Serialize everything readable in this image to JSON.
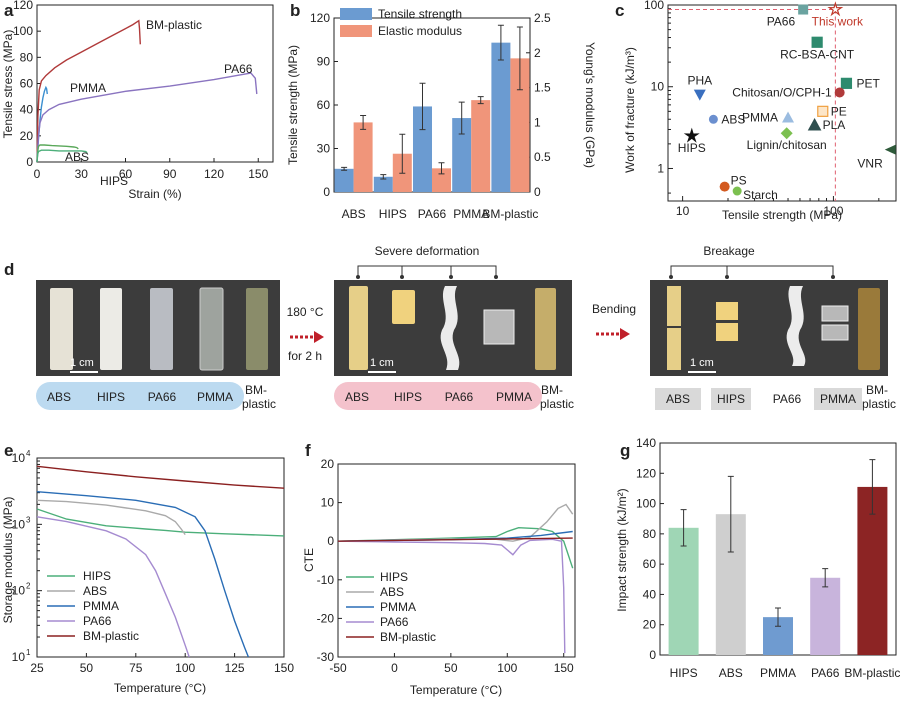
{
  "panels": {
    "a": "a",
    "b": "b",
    "c": "c",
    "d": "d",
    "e": "e",
    "f": "f",
    "g": "g"
  },
  "chart_data": [
    {
      "id": "a",
      "type": "line",
      "xlabel": "Strain (%)",
      "ylabel": "Tensile stress (MPa)",
      "xlim": [
        0,
        160
      ],
      "ylim": [
        0,
        120
      ],
      "xticks": [
        0,
        30,
        60,
        90,
        120,
        150
      ],
      "yticks": [
        0,
        20,
        40,
        60,
        80,
        100,
        120
      ],
      "annotations": [
        "BM-plastic",
        "PMMA",
        "PA66",
        "ABS",
        "HIPS"
      ],
      "series": [
        {
          "name": "BM-plastic",
          "color": "#b03a3a",
          "x": [
            0,
            0.6,
            1.5,
            3,
            6,
            12,
            20,
            30,
            40,
            50,
            60,
            65,
            69,
            69.5,
            70
          ],
          "y": [
            0,
            35,
            55,
            62,
            66,
            72,
            78,
            84,
            90,
            96,
            102,
            105,
            108,
            102,
            90
          ]
        },
        {
          "name": "PMMA",
          "color": "#3b8fd0",
          "x": [
            0,
            1,
            2,
            3,
            4,
            5,
            6,
            6.5,
            7
          ],
          "y": [
            0,
            18,
            32,
            42,
            49,
            54,
            57,
            56,
            52
          ]
        },
        {
          "name": "PA66",
          "color": "#8a74c0",
          "x": [
            0,
            1,
            2,
            4,
            8,
            15,
            30,
            60,
            90,
            120,
            140,
            145,
            148,
            149
          ],
          "y": [
            0,
            20,
            30,
            36,
            40,
            44,
            48,
            54,
            58,
            63,
            67,
            68,
            64,
            52
          ]
        },
        {
          "name": "ABS",
          "color": "#5aa85a",
          "x": [
            0,
            0.5,
            1,
            2,
            5,
            10,
            20,
            25,
            27,
            28
          ],
          "y": [
            0,
            8,
            12,
            13,
            13,
            12.5,
            12,
            11.5,
            11,
            10
          ]
        },
        {
          "name": "HIPS",
          "color": "#4caf7a",
          "x": [
            0,
            0.5,
            1,
            3,
            8,
            15,
            25,
            30,
            33,
            34
          ],
          "y": [
            0,
            6,
            8,
            9,
            9,
            8.5,
            8.5,
            8.5,
            8,
            7
          ]
        }
      ]
    },
    {
      "id": "b",
      "type": "bar",
      "categories": [
        "ABS",
        "HIPS",
        "PA66",
        "PMMA",
        "BM-plastic"
      ],
      "ylabel": "Tensile strength (MPa)",
      "y2label": "Young's modulus (GPa)",
      "ylim": [
        0,
        120
      ],
      "y2lim": [
        0,
        2.5
      ],
      "yticks": [
        0,
        30,
        60,
        90,
        120
      ],
      "y2ticks": [
        0,
        0.5,
        1,
        1.5,
        2,
        2.5
      ],
      "legend": [
        "Tensile strength",
        "Elastic modulus"
      ],
      "legend_position": "top-left",
      "series": [
        {
          "name": "Tensile strength",
          "axis": "left",
          "color": "#6b9bd1",
          "values": [
            16,
            10.5,
            59,
            51,
            103
          ],
          "errors": [
            1,
            1.5,
            16,
            11,
            12
          ]
        },
        {
          "name": "Elastic modulus",
          "axis": "right",
          "color": "#f0957a",
          "values": [
            1.0,
            0.55,
            0.34,
            1.32,
            1.92
          ],
          "errors": [
            0.1,
            0.28,
            0.08,
            0.05,
            0.45
          ]
        }
      ]
    },
    {
      "id": "c",
      "type": "scatter",
      "xlabel": "Tensile strength (MPa)",
      "ylabel": "Work of fracture (kJ/m³)",
      "xscale": "log",
      "yscale": "log",
      "xlim": [
        8,
        260
      ],
      "ylim": [
        0.4,
        100
      ],
      "xticks": [
        10,
        100
      ],
      "yticks": [
        1,
        10,
        100
      ],
      "points": [
        {
          "label": "PA66",
          "x": 63,
          "y": 88,
          "color": "#6aa3a0",
          "marker": "square"
        },
        {
          "label": "This work",
          "x": 103,
          "y": 88,
          "color": "#c0392b",
          "marker": "star-open"
        },
        {
          "label": "RC-BSA-CNT",
          "x": 78,
          "y": 35,
          "color": "#2e8b6e",
          "marker": "grid"
        },
        {
          "label": "PHA",
          "x": 13,
          "y": 8,
          "color": "#3a6fbf",
          "marker": "tri-down"
        },
        {
          "label": "PET",
          "x": 122,
          "y": 11,
          "color": "#2e8b6e",
          "marker": "half-square"
        },
        {
          "label": "Chitosan/O/CPH-1",
          "x": 110,
          "y": 8.5,
          "color": "#b03a3a",
          "marker": "circle"
        },
        {
          "label": "ABS",
          "x": 16,
          "y": 4,
          "color": "#6b8fcf",
          "marker": "half-circle"
        },
        {
          "label": "PMMA",
          "x": 50,
          "y": 4.2,
          "color": "#9bbce0",
          "marker": "triangle"
        },
        {
          "label": "PE",
          "x": 85,
          "y": 5,
          "color": "#f0a040",
          "marker": "cross-square"
        },
        {
          "label": "PLA",
          "x": 75,
          "y": 3.4,
          "color": "#2f4f4f",
          "marker": "tri-half"
        },
        {
          "label": "Lignin/chitosan",
          "x": 49,
          "y": 2.7,
          "color": "#7cc050",
          "marker": "diamond"
        },
        {
          "label": "HIPS",
          "x": 11.5,
          "y": 2.5,
          "color": "#111111",
          "marker": "star"
        },
        {
          "label": "VNR",
          "x": 240,
          "y": 1.7,
          "color": "#2e5a3a",
          "marker": "tri-left"
        },
        {
          "label": "PS",
          "x": 19,
          "y": 0.6,
          "color": "#d35a20",
          "marker": "circle"
        },
        {
          "label": "Starch",
          "x": 23,
          "y": 0.53,
          "color": "#7cc050",
          "marker": "half-circle"
        }
      ]
    },
    {
      "id": "e",
      "type": "line",
      "xlabel": "Temperature (°C)",
      "ylabel": "Storage modulus (MPa)",
      "yscale": "log",
      "xlim": [
        25,
        150
      ],
      "ylim": [
        10,
        10000
      ],
      "xticks": [
        25,
        50,
        75,
        100,
        125,
        150
      ],
      "yticks_exp": [
        1,
        2,
        3,
        4
      ],
      "legend_position": "bottom-left",
      "series": [
        {
          "name": "HIPS",
          "color": "#4caf7a",
          "x": [
            25,
            40,
            60,
            80,
            90,
            100,
            120,
            150
          ],
          "y": [
            1700,
            1200,
            950,
            850,
            810,
            760,
            720,
            670
          ]
        },
        {
          "name": "ABS",
          "color": "#aaaaaa",
          "x": [
            25,
            40,
            60,
            80,
            90,
            95,
            98,
            100
          ],
          "y": [
            2300,
            2200,
            1950,
            1600,
            1350,
            1100,
            850,
            700
          ]
        },
        {
          "name": "PMMA",
          "color": "#2a6db5",
          "x": [
            25,
            50,
            75,
            95,
            105,
            110,
            115,
            120,
            125,
            130,
            132
          ],
          "y": [
            3100,
            2700,
            2300,
            1800,
            1300,
            800,
            300,
            100,
            35,
            14,
            10
          ]
        },
        {
          "name": "PA66",
          "color": "#a58bd0",
          "x": [
            25,
            40,
            60,
            70,
            80,
            85,
            90,
            95,
            100,
            102
          ],
          "y": [
            1300,
            1100,
            800,
            600,
            350,
            200,
            90,
            40,
            15,
            10
          ]
        },
        {
          "name": "BM-plastic",
          "color": "#8b2020",
          "x": [
            25,
            50,
            75,
            100,
            125,
            150
          ],
          "y": [
            7500,
            6200,
            5200,
            4500,
            3900,
            3500
          ]
        }
      ]
    },
    {
      "id": "f",
      "type": "line",
      "xlabel": "Temperature (°C)",
      "ylabel": "CTE",
      "xlim": [
        -50,
        160
      ],
      "ylim": [
        -30,
        20
      ],
      "xticks": [
        -50,
        0,
        50,
        100,
        150
      ],
      "yticks": [
        -30,
        -20,
        -10,
        0,
        10,
        20
      ],
      "legend_position": "bottom-left",
      "series": [
        {
          "name": "HIPS",
          "color": "#4caf7a",
          "x": [
            -50,
            0,
            50,
            90,
            100,
            110,
            130,
            140,
            150,
            158
          ],
          "y": [
            0,
            0.4,
            0.8,
            1.2,
            2.5,
            3.5,
            3.2,
            2.5,
            0,
            -7
          ]
        },
        {
          "name": "ABS",
          "color": "#aaaaaa",
          "x": [
            -50,
            0,
            50,
            90,
            105,
            120,
            135,
            145,
            152,
            158
          ],
          "y": [
            0,
            0.3,
            0.6,
            0.5,
            0,
            1,
            5,
            8.5,
            9.5,
            7
          ]
        },
        {
          "name": "PMMA",
          "color": "#2a6db5",
          "x": [
            -50,
            0,
            50,
            100,
            130,
            158
          ],
          "y": [
            0,
            0.2,
            0.4,
            0.8,
            1.5,
            2.5
          ]
        },
        {
          "name": "PA66",
          "color": "#a58bd0",
          "x": [
            -50,
            0,
            50,
            80,
            95,
            105,
            112,
            120,
            140,
            148,
            150,
            151
          ],
          "y": [
            0,
            -0.2,
            -0.4,
            -0.6,
            -1,
            -3.5,
            -1,
            0.2,
            0.5,
            0,
            -12,
            -29
          ]
        },
        {
          "name": "BM-plastic",
          "color": "#8b2020",
          "x": [
            -50,
            0,
            50,
            100,
            158
          ],
          "y": [
            0,
            0.2,
            0.4,
            0.6,
            0.8
          ]
        }
      ]
    },
    {
      "id": "g",
      "type": "bar",
      "categories": [
        "HIPS",
        "ABS",
        "PMMA",
        "PA66",
        "BM-plastic"
      ],
      "ylabel": "Impact strength (kJ/m²)",
      "ylim": [
        0,
        140
      ],
      "yticks": [
        0,
        20,
        40,
        60,
        80,
        100,
        120,
        140
      ],
      "colors": [
        "#9fd6b5",
        "#cfcfcf",
        "#6f9bd0",
        "#c8b4dc",
        "#8c2424"
      ],
      "values": [
        84,
        93,
        25,
        51,
        111
      ],
      "errors": [
        12,
        25,
        6,
        6,
        18
      ]
    }
  ],
  "figure_d": {
    "arrow1_line1": "180 °C",
    "arrow1_line2": "for 2 h",
    "arrow2": "Bending",
    "title_severe": "Severe deformation",
    "title_breakage": "Breakage",
    "scale": "1 cm",
    "group1_labels": [
      "ABS",
      "HIPS",
      "PA66",
      "PMMA"
    ],
    "group2_labels": [
      "ABS",
      "HIPS",
      "PA66",
      "PMMA"
    ],
    "group3_labels": [
      "ABS",
      "HIPS",
      "PA66",
      "PMMA"
    ],
    "bm_line1": "BM-",
    "bm_line2": "plastic",
    "chip_blue": "#bcdaf0",
    "chip_pink": "#f4c2cc",
    "chip_gray": "#d9d9d9",
    "photo_bg": "#3c3c3c"
  }
}
